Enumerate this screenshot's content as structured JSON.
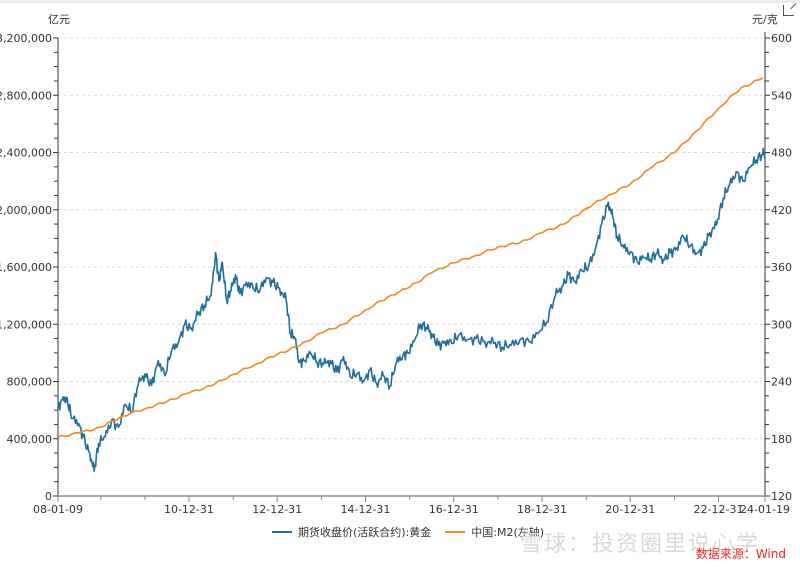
{
  "header": {
    "left_unit": "亿元",
    "right_unit": "元/克",
    "expand_icon": "expand-icon"
  },
  "legend": {
    "items": [
      {
        "label": "期货收盘价(活跃合约):黄金",
        "color": "#1f6e9c"
      },
      {
        "label": "中国:M2(左轴)",
        "color": "#f08a1e"
      }
    ]
  },
  "footer": {
    "watermark": "雪球：投资圈里说心学",
    "source": "数据来源：Wind"
  },
  "chart_data": {
    "type": "line",
    "title": "",
    "xlabel": "",
    "ylabel_left": "亿元",
    "ylabel_right": "元/克",
    "x_ticks": [
      "08-01-09",
      "10-12-31",
      "12-12-31",
      "14-12-31",
      "16-12-31",
      "18-12-31",
      "20-12-31",
      "22-12-31",
      "24-01-19"
    ],
    "x_range": [
      "2008-01-09",
      "2024-01-19"
    ],
    "y_left": {
      "range": [
        0,
        3200000
      ],
      "ticks": [
        0,
        400000,
        800000,
        1200000,
        1600000,
        2000000,
        2400000,
        2800000,
        3200000
      ],
      "tick_labels": [
        "0",
        "400,000",
        "800,000",
        "1,200,000",
        "1,600,000",
        "2,000,000",
        "2,400,000",
        "2,800,000",
        "3,200,000"
      ]
    },
    "y_right": {
      "range": [
        120,
        600
      ],
      "ticks": [
        120,
        180,
        240,
        300,
        360,
        420,
        480,
        540,
        600
      ],
      "tick_labels": [
        "120",
        "180",
        "240",
        "300",
        "360",
        "420",
        "480",
        "540",
        "600"
      ]
    },
    "grid": true,
    "legend_position": "bottom",
    "series": [
      {
        "name": "期货收盘价(活跃合约):黄金",
        "axis": "right",
        "color": "#1f6e9c",
        "x": [
          2008.03,
          2008.15,
          2008.25,
          2008.35,
          2008.5,
          2008.6,
          2008.75,
          2008.85,
          2008.95,
          2009.1,
          2009.25,
          2009.4,
          2009.55,
          2009.7,
          2009.85,
          2010.0,
          2010.15,
          2010.3,
          2010.45,
          2010.6,
          2010.75,
          2010.9,
          2011.05,
          2011.2,
          2011.35,
          2011.5,
          2011.6,
          2011.68,
          2011.75,
          2011.85,
          2011.95,
          2012.05,
          2012.15,
          2012.3,
          2012.45,
          2012.6,
          2012.75,
          2012.9,
          2013.05,
          2013.2,
          2013.3,
          2013.4,
          2013.5,
          2013.6,
          2013.75,
          2013.9,
          2014.05,
          2014.2,
          2014.35,
          2014.5,
          2014.65,
          2014.8,
          2014.95,
          2015.1,
          2015.25,
          2015.4,
          2015.55,
          2015.7,
          2015.85,
          2015.95,
          2016.1,
          2016.25,
          2016.4,
          2016.5,
          2016.65,
          2016.8,
          2016.95,
          2017.1,
          2017.3,
          2017.5,
          2017.7,
          2017.9,
          2018.1,
          2018.3,
          2018.5,
          2018.7,
          2018.9,
          2019.1,
          2019.3,
          2019.45,
          2019.6,
          2019.75,
          2019.9,
          2020.05,
          2020.2,
          2020.35,
          2020.5,
          2020.6,
          2020.7,
          2020.85,
          2021.0,
          2021.15,
          2021.3,
          2021.45,
          2021.6,
          2021.75,
          2021.9,
          2022.05,
          2022.2,
          2022.35,
          2022.5,
          2022.65,
          2022.8,
          2022.95,
          2023.1,
          2023.25,
          2023.4,
          2023.55,
          2023.7,
          2023.85,
          2024.0,
          2024.05
        ],
        "values": [
          212,
          224,
          218,
          201,
          196,
          182,
          165,
          146,
          175,
          182,
          200,
          192,
          216,
          208,
          237,
          248,
          236,
          262,
          246,
          272,
          280,
          300,
          296,
          310,
          320,
          330,
          375,
          345,
          365,
          325,
          335,
          352,
          332,
          344,
          338,
          335,
          349,
          344,
          338,
          325,
          290,
          285,
          260,
          262,
          270,
          260,
          258,
          262,
          250,
          266,
          245,
          248,
          240,
          252,
          238,
          246,
          235,
          260,
          268,
          270,
          282,
          300,
          295,
          290,
          278,
          282,
          280,
          288,
          284,
          285,
          282,
          280,
          276,
          278,
          284,
          282,
          290,
          302,
          330,
          340,
          352,
          345,
          356,
          360,
          378,
          405,
          428,
          412,
          392,
          380,
          376,
          366,
          370,
          368,
          374,
          368,
          375,
          380,
          392,
          382,
          374,
          380,
          396,
          404,
          432,
          446,
          460,
          450,
          464,
          472,
          478,
          480
        ]
      },
      {
        "name": "中国:M2(左轴)",
        "axis": "left",
        "color": "#f08a1e",
        "x": [
          2008.03,
          2008.5,
          2009.0,
          2009.5,
          2010.0,
          2010.5,
          2011.0,
          2011.5,
          2012.0,
          2012.5,
          2013.0,
          2013.5,
          2014.0,
          2014.5,
          2015.0,
          2015.5,
          2016.0,
          2016.5,
          2017.0,
          2017.5,
          2018.0,
          2018.5,
          2019.0,
          2019.5,
          2020.0,
          2020.5,
          2021.0,
          2021.5,
          2022.0,
          2022.5,
          2023.0,
          2023.5,
          2024.0
        ],
        "values": [
          410000,
          440000,
          480000,
          560000,
          610000,
          660000,
          720000,
          770000,
          850000,
          920000,
          990000,
          1050000,
          1140000,
          1200000,
          1300000,
          1390000,
          1460000,
          1560000,
          1630000,
          1680000,
          1740000,
          1770000,
          1840000,
          1900000,
          2010000,
          2100000,
          2180000,
          2300000,
          2400000,
          2550000,
          2710000,
          2850000,
          2920000
        ]
      }
    ]
  }
}
